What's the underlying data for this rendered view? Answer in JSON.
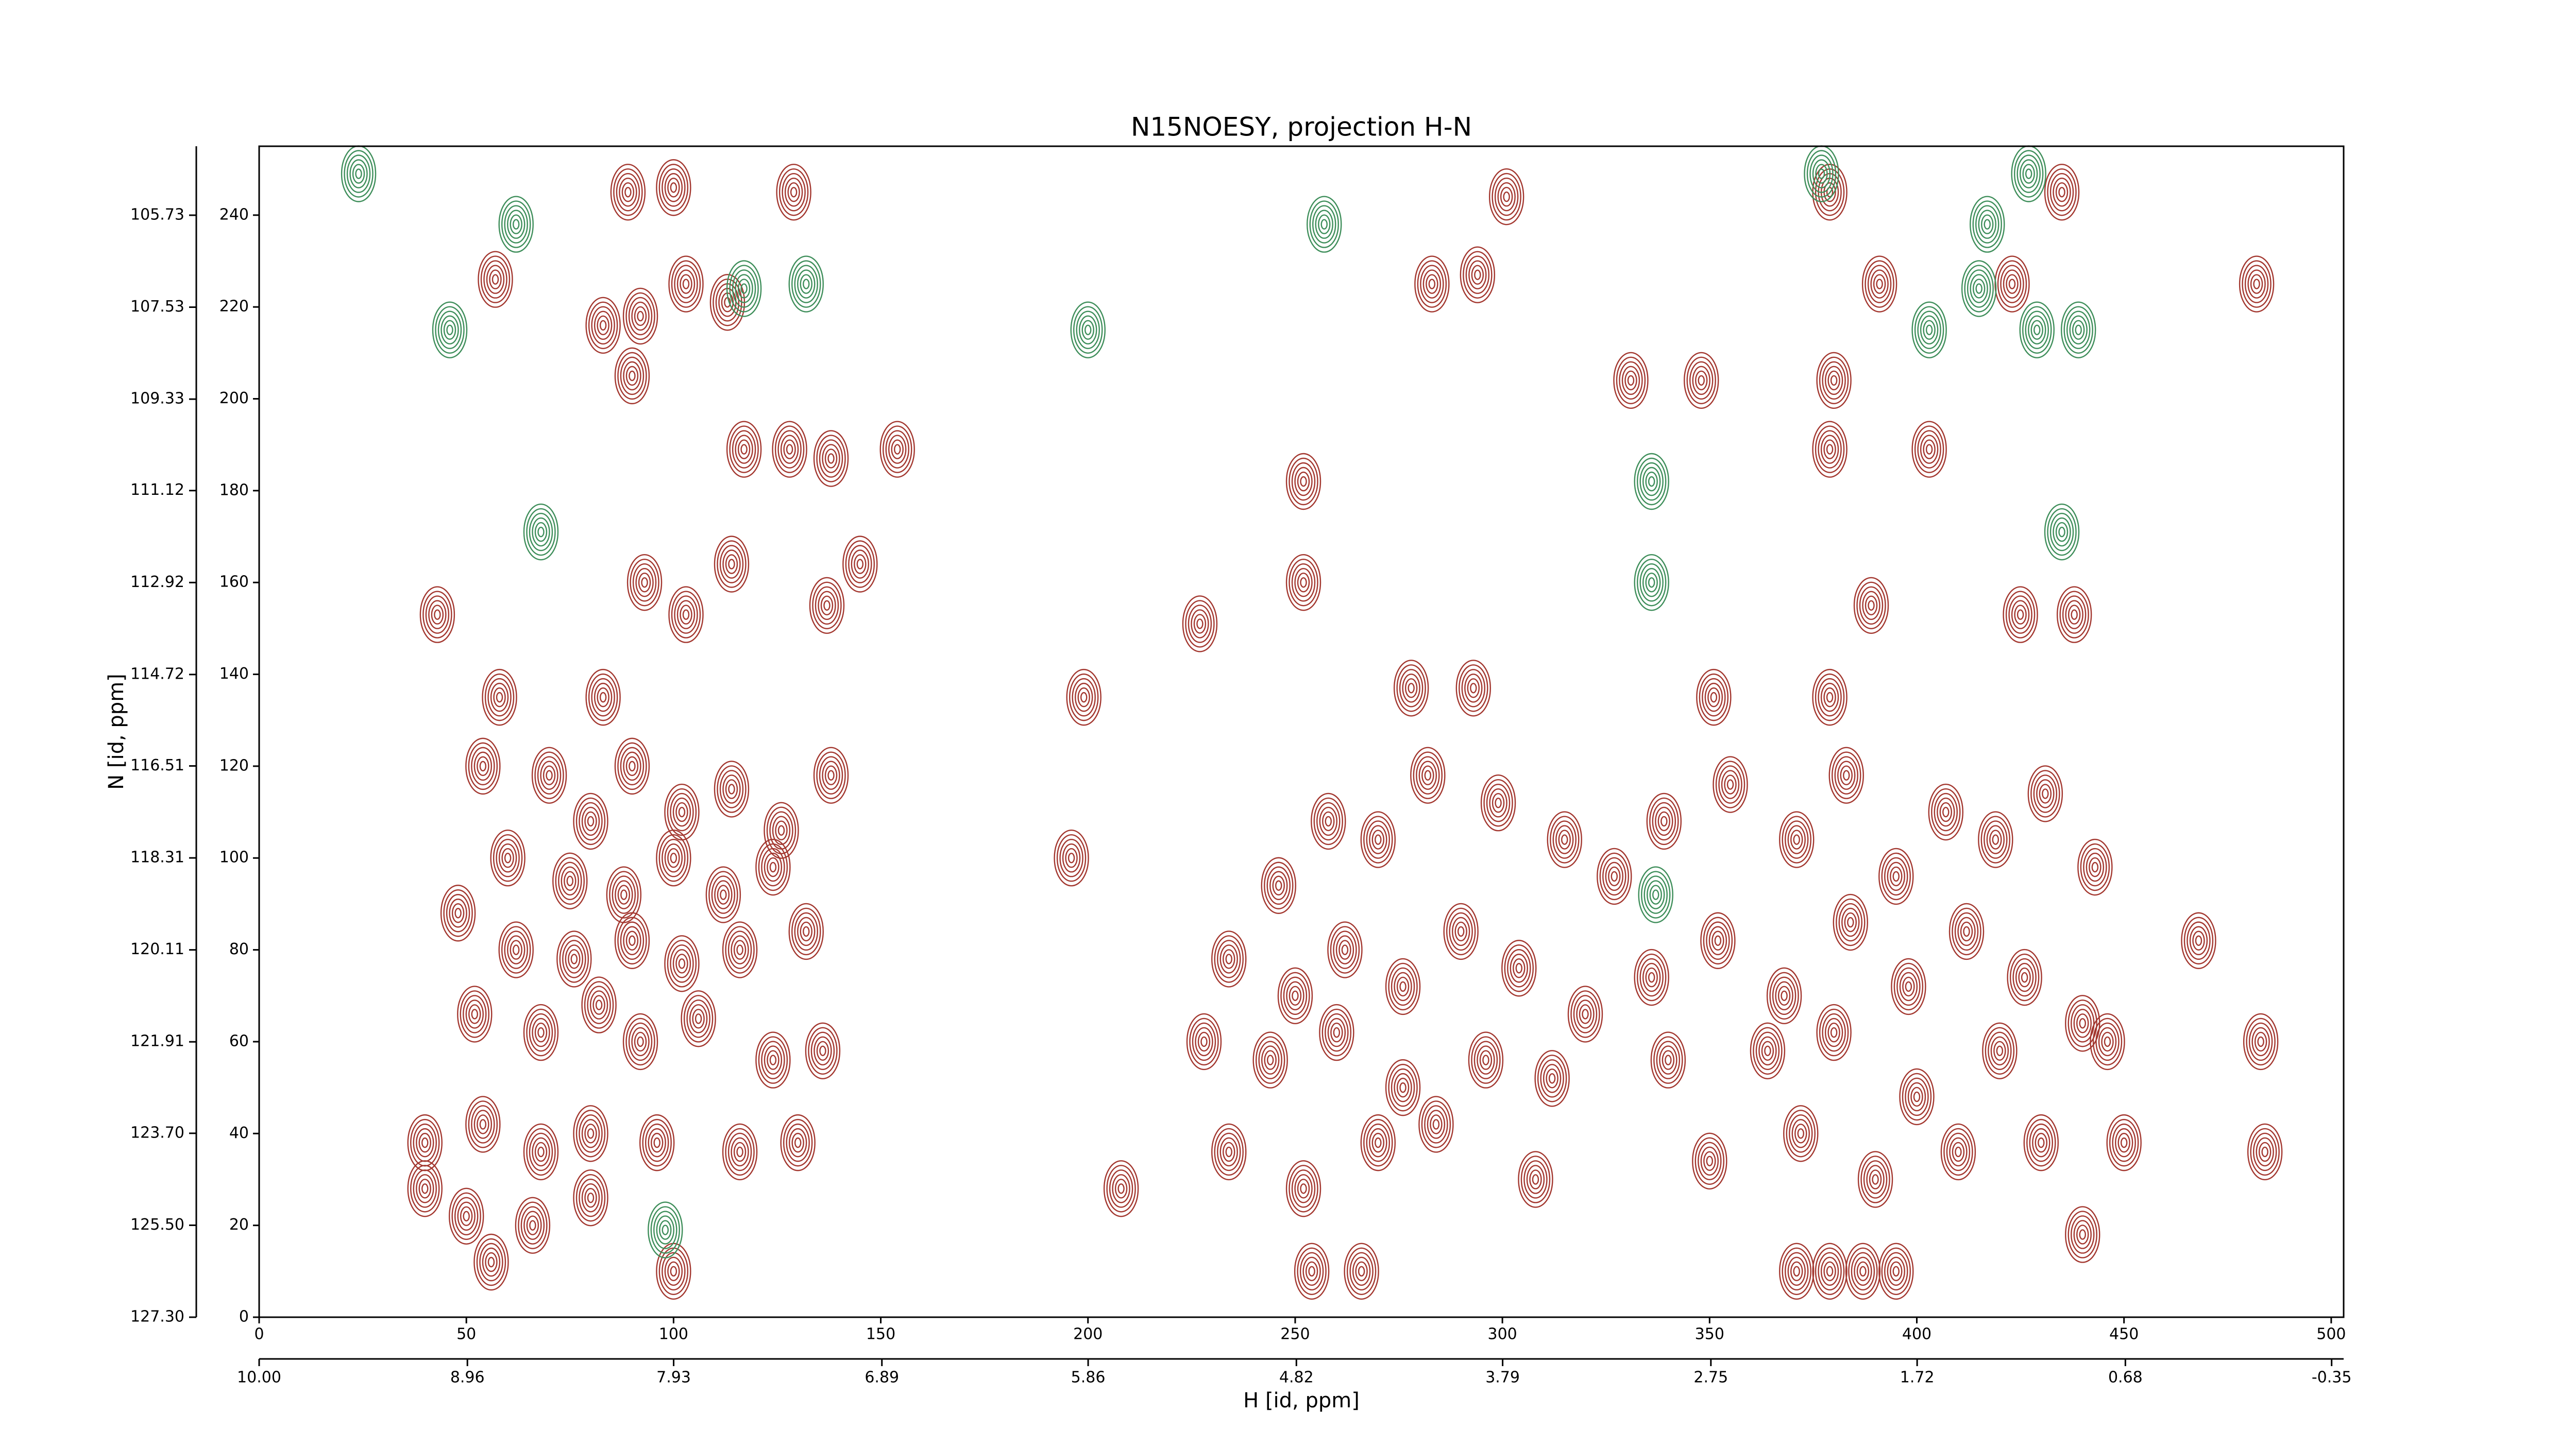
{
  "chart_data": {
    "type": "contour",
    "title": "N15NOESY, projection H-N",
    "xlabel": "H [id, ppm]",
    "ylabel": "N [id, ppm]",
    "xlim": [
      0,
      503
    ],
    "ylim": [
      0,
      255
    ],
    "xticks": [
      0,
      50,
      100,
      150,
      200,
      250,
      300,
      350,
      400,
      450,
      500
    ],
    "yticks": [
      0,
      20,
      40,
      60,
      80,
      100,
      120,
      140,
      160,
      180,
      200,
      220,
      240
    ],
    "x2lim": [
      10.0,
      -0.41
    ],
    "x2ticks": [
      {
        "value": 10,
        "label": "10.00"
      },
      8.96,
      7.93,
      6.89,
      5.86,
      4.82,
      3.79,
      2.75,
      1.72,
      0.68,
      -0.35
    ],
    "y2lim": [
      127.3,
      104.38
    ],
    "y2ticks": [
      {
        "value": 127.3,
        "label": "127.30"
      },
      {
        "value": 125.5,
        "label": "125.50"
      },
      {
        "value": 123.7,
        "label": "123.70"
      },
      121.91,
      120.11,
      118.31,
      116.51,
      114.72,
      112.92,
      111.12,
      109.33,
      107.53,
      105.73
    ],
    "series": [
      {
        "color": "#a3372f",
        "x": [
          129,
          89,
          100,
          57,
          83,
          92,
          103,
          113,
          90,
          117,
          128,
          138,
          154,
          43,
          93,
          103,
          114,
          137,
          145,
          58,
          83,
          199,
          227,
          252,
          252,
          278,
          293,
          294,
          283,
          301,
          331,
          348,
          380,
          379,
          403,
          389,
          425,
          438,
          351,
          379,
          482,
          435,
          379,
          391,
          423,
          54,
          70,
          80,
          90,
          102,
          114,
          126,
          138,
          60,
          75,
          88,
          100,
          112,
          124,
          48,
          62,
          76,
          90,
          102,
          116,
          132,
          52,
          68,
          82,
          92,
          106,
          124,
          136,
          40,
          54,
          68,
          80,
          96,
          116,
          130,
          40,
          50,
          66,
          80,
          56,
          100,
          234,
          246,
          258,
          270,
          282,
          299,
          315,
          327,
          339,
          355,
          371,
          383,
          395,
          407,
          419,
          431,
          443,
          250,
          262,
          276,
          290,
          304,
          320,
          336,
          352,
          368,
          384,
          398,
          412,
          426,
          440,
          228,
          244,
          260,
          276,
          296,
          312,
          340,
          364,
          380,
          400,
          420,
          446,
          234,
          252,
          270,
          284,
          308,
          350,
          372,
          390,
          410,
          430,
          450,
          254,
          266,
          371,
          379,
          387,
          395,
          440,
          208,
          196,
          468,
          483,
          484
        ],
        "values": [
          245,
          245,
          246,
          226,
          216,
          218,
          225,
          221,
          205,
          189,
          189,
          187,
          189,
          153,
          160,
          153,
          164,
          155,
          164,
          135,
          135,
          135,
          151,
          182,
          160,
          137,
          137,
          227,
          225,
          244,
          204,
          204,
          204,
          189,
          189,
          155,
          153,
          153,
          135,
          135,
          225,
          245,
          245,
          225,
          225,
          120,
          118,
          108,
          120,
          110,
          115,
          106,
          118,
          100,
          95,
          92,
          100,
          92,
          98,
          88,
          80,
          78,
          82,
          77,
          80,
          84,
          66,
          62,
          68,
          60,
          65,
          56,
          58,
          38,
          42,
          36,
          40,
          38,
          36,
          38,
          28,
          22,
          20,
          26,
          12,
          10,
          78,
          94,
          108,
          104,
          118,
          112,
          104,
          96,
          108,
          116,
          104,
          118,
          96,
          110,
          104,
          114,
          98,
          70,
          80,
          72,
          84,
          76,
          66,
          74,
          82,
          70,
          86,
          72,
          84,
          74,
          64,
          60,
          56,
          62,
          50,
          56,
          52,
          56,
          58,
          62,
          48,
          58,
          60,
          36,
          28,
          38,
          42,
          30,
          34,
          40,
          30,
          36,
          38,
          38,
          10,
          10,
          10,
          10,
          10,
          10,
          18,
          28,
          100,
          82,
          60,
          36
        ]
      },
      {
        "color": "#3e8e5a",
        "x": [
          24,
          46,
          62,
          132,
          117,
          257,
          377,
          417,
          427,
          429,
          439,
          415,
          336,
          336,
          98,
          337,
          200,
          403,
          68,
          435
        ],
        "values": [
          249,
          215,
          238,
          225,
          224,
          238,
          249,
          238,
          249,
          215,
          215,
          224,
          182,
          160,
          19,
          92,
          215,
          215,
          171,
          171
        ]
      }
    ]
  }
}
